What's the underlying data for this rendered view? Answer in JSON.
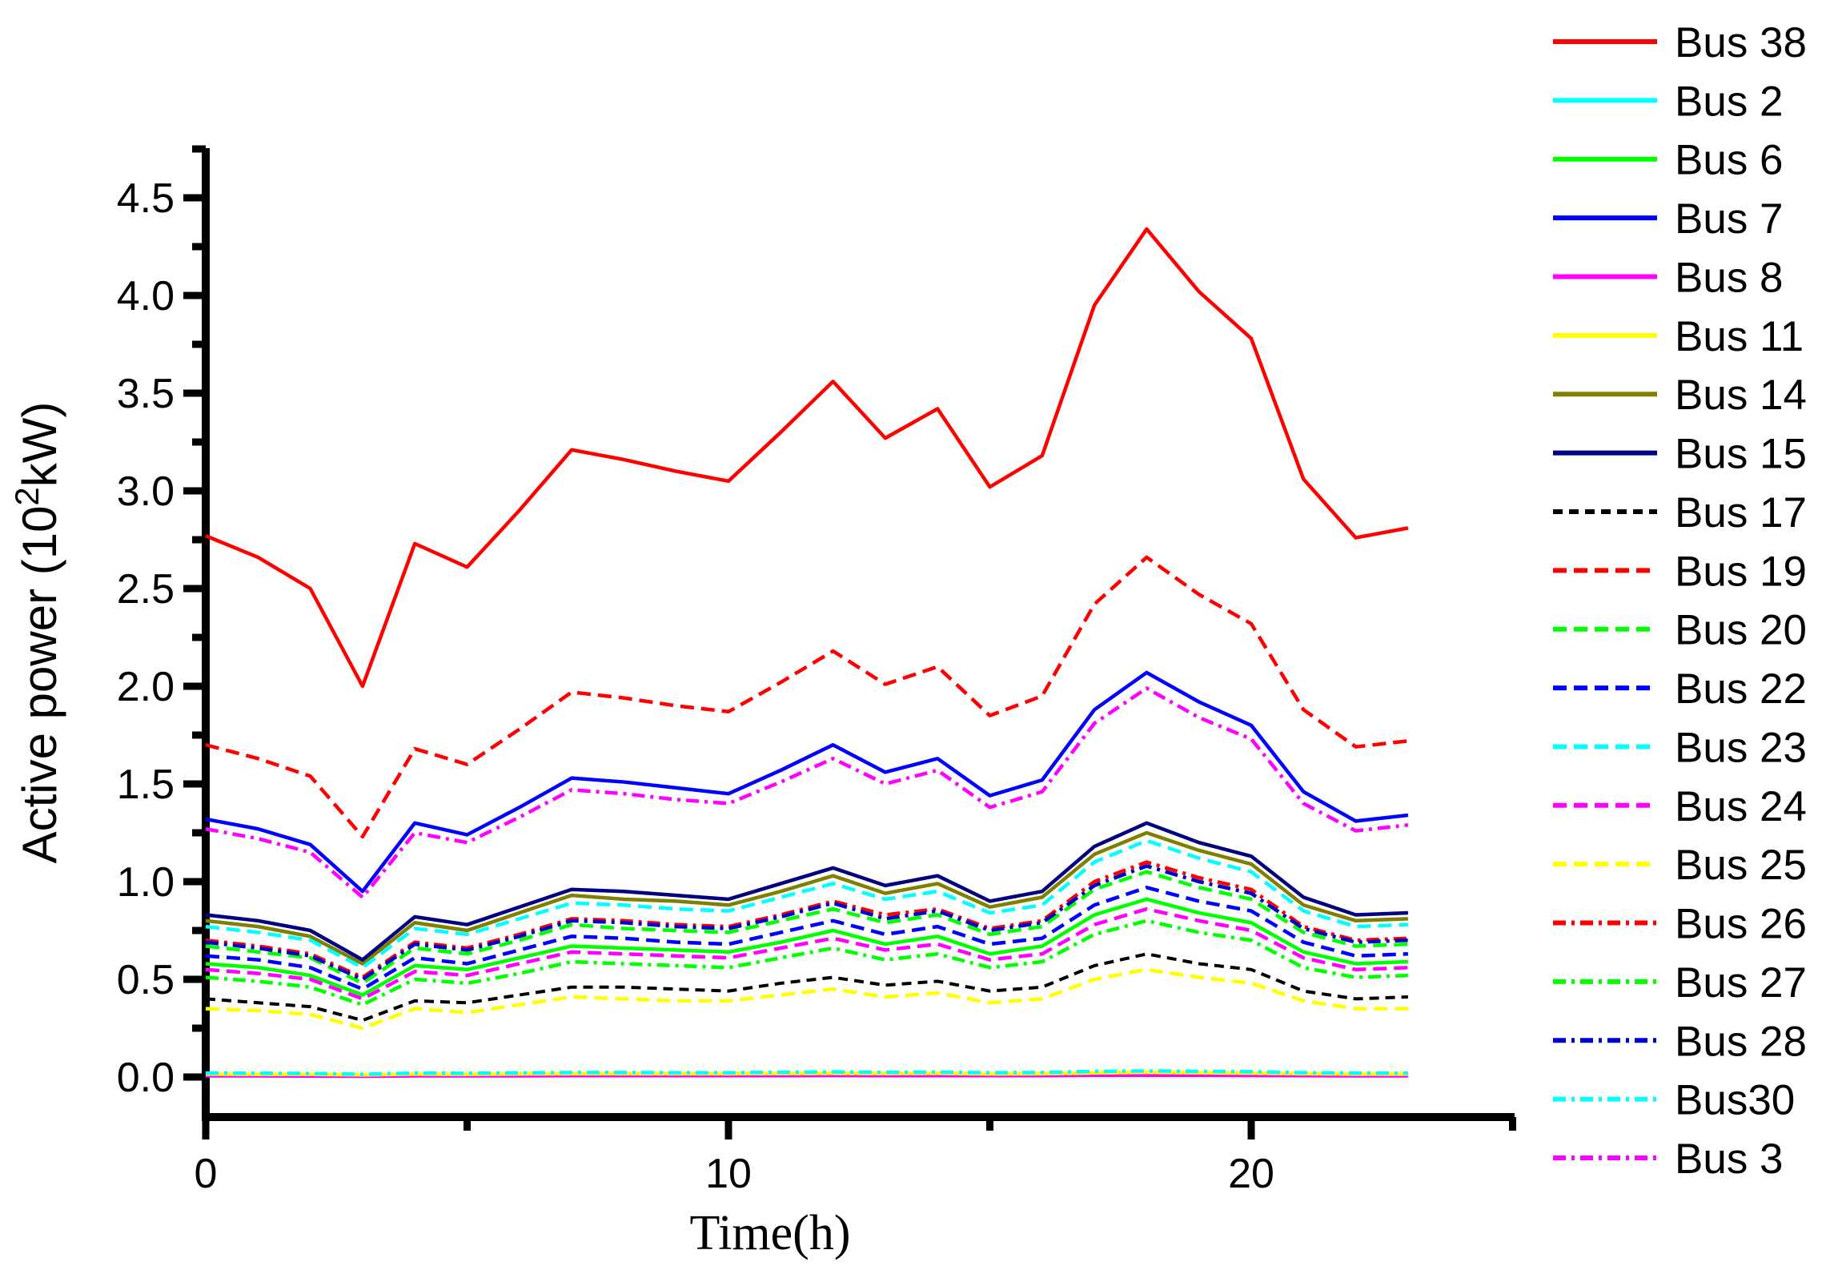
{
  "chart_data": {
    "type": "line",
    "title": "",
    "xlabel": "Time(h)",
    "ylabel_parts": {
      "pre": "Active power (10",
      "sup": "2",
      "post": "kW)"
    },
    "axis_color": "#000000",
    "axes": {
      "xlim": [
        0,
        25.04
      ],
      "ylim": [
        -0.205,
        4.754
      ],
      "x_major": [
        0,
        10,
        20
      ],
      "x_minor": [
        5,
        15,
        25
      ],
      "y_major": [
        0.0,
        0.5,
        1.0,
        1.5,
        2.0,
        2.5,
        3.0,
        3.5,
        4.0,
        4.5
      ],
      "y_minor": [
        0.25,
        0.75,
        1.25,
        1.75,
        2.25,
        2.75,
        3.25,
        3.75,
        4.25,
        4.75
      ],
      "grid": false,
      "legend_position": "right"
    },
    "x_tick_labels": [
      "0",
      "10",
      "20"
    ],
    "y_tick_labels": [
      "0.0",
      "0.5",
      "1.0",
      "1.5",
      "2.0",
      "2.5",
      "3.0",
      "3.5",
      "4.0",
      "4.5"
    ],
    "x": [
      0,
      1,
      2,
      3,
      4,
      5,
      6,
      7,
      8,
      9,
      10,
      11,
      12,
      13,
      14,
      15,
      16,
      17,
      18,
      19,
      20,
      21,
      22,
      23
    ],
    "series": [
      {
        "name": "Bus 38",
        "color": "#FF0000",
        "style": "solid",
        "dash": "",
        "width": 4.5,
        "values": [
          2.77,
          2.66,
          2.5,
          2.0,
          2.73,
          2.61,
          2.9,
          3.21,
          3.16,
          3.1,
          3.05,
          3.3,
          3.56,
          3.27,
          3.42,
          3.02,
          3.18,
          3.95,
          4.34,
          4.02,
          3.78,
          3.06,
          2.76,
          2.81
        ]
      },
      {
        "name": "Bus 2",
        "color": "#00FFFF",
        "style": "solid",
        "dash": "",
        "width": 4.5,
        "values": [
          0.012,
          0.012,
          0.011,
          0.009,
          0.012,
          0.011,
          0.013,
          0.014,
          0.014,
          0.013,
          0.013,
          0.014,
          0.015,
          0.014,
          0.015,
          0.013,
          0.014,
          0.017,
          0.019,
          0.017,
          0.016,
          0.013,
          0.012,
          0.012
        ]
      },
      {
        "name": "Bus 6",
        "color": "#00FF00",
        "style": "solid",
        "dash": "",
        "width": 4.5,
        "values": [
          0.58,
          0.56,
          0.52,
          0.42,
          0.57,
          0.55,
          0.61,
          0.67,
          0.66,
          0.65,
          0.64,
          0.69,
          0.75,
          0.68,
          0.72,
          0.63,
          0.67,
          0.83,
          0.91,
          0.84,
          0.79,
          0.64,
          0.58,
          0.59
        ]
      },
      {
        "name": "Bus 7",
        "color": "#0000FF",
        "style": "solid",
        "dash": "",
        "width": 4.5,
        "values": [
          1.32,
          1.27,
          1.19,
          0.95,
          1.3,
          1.24,
          1.38,
          1.53,
          1.51,
          1.48,
          1.45,
          1.57,
          1.7,
          1.56,
          1.63,
          1.44,
          1.52,
          1.88,
          2.07,
          1.92,
          1.8,
          1.46,
          1.31,
          1.34
        ]
      },
      {
        "name": "Bus 8",
        "color": "#FF00FF",
        "style": "solid",
        "dash": "",
        "width": 4.5,
        "values": [
          0.006,
          0.006,
          0.005,
          0.004,
          0.006,
          0.006,
          0.006,
          0.007,
          0.007,
          0.007,
          0.007,
          0.007,
          0.008,
          0.007,
          0.007,
          0.007,
          0.007,
          0.009,
          0.009,
          0.009,
          0.008,
          0.007,
          0.006,
          0.006
        ]
      },
      {
        "name": "Bus 11",
        "color": "#FFFF00",
        "style": "solid",
        "dash": "",
        "width": 4.5,
        "values": [
          0.015,
          0.014,
          0.014,
          0.011,
          0.015,
          0.014,
          0.016,
          0.017,
          0.017,
          0.017,
          0.017,
          0.018,
          0.019,
          0.018,
          0.019,
          0.016,
          0.017,
          0.021,
          0.024,
          0.022,
          0.02,
          0.017,
          0.015,
          0.015
        ]
      },
      {
        "name": "Bus 14",
        "color": "#808000",
        "style": "solid",
        "dash": "",
        "width": 4.5,
        "values": [
          0.8,
          0.77,
          0.72,
          0.58,
          0.79,
          0.75,
          0.84,
          0.93,
          0.91,
          0.9,
          0.88,
          0.95,
          1.03,
          0.94,
          0.99,
          0.87,
          0.92,
          1.14,
          1.25,
          1.16,
          1.09,
          0.88,
          0.8,
          0.81
        ]
      },
      {
        "name": "Bus 15",
        "color": "#000080",
        "style": "solid",
        "dash": "",
        "width": 4.5,
        "values": [
          0.83,
          0.8,
          0.75,
          0.6,
          0.82,
          0.78,
          0.87,
          0.96,
          0.95,
          0.93,
          0.91,
          0.99,
          1.07,
          0.98,
          1.03,
          0.9,
          0.95,
          1.18,
          1.3,
          1.2,
          1.13,
          0.92,
          0.83,
          0.84
        ]
      },
      {
        "name": "Bus 17",
        "color": "#000000",
        "style": "dash",
        "dash": "12 8",
        "width": 4,
        "values": [
          0.4,
          0.38,
          0.36,
          0.29,
          0.39,
          0.38,
          0.42,
          0.46,
          0.46,
          0.45,
          0.44,
          0.48,
          0.51,
          0.47,
          0.49,
          0.44,
          0.46,
          0.57,
          0.63,
          0.58,
          0.55,
          0.44,
          0.4,
          0.41
        ]
      },
      {
        "name": "Bus 19",
        "color": "#FF0000",
        "style": "dash",
        "dash": "17 9",
        "width": 4.5,
        "values": [
          1.7,
          1.63,
          1.54,
          1.23,
          1.68,
          1.6,
          1.78,
          1.97,
          1.94,
          1.9,
          1.87,
          2.02,
          2.18,
          2.01,
          2.1,
          1.85,
          1.95,
          2.42,
          2.66,
          2.47,
          2.32,
          1.88,
          1.69,
          1.72
        ]
      },
      {
        "name": "Bus 20",
        "color": "#00FF00",
        "style": "dash",
        "dash": "17 9",
        "width": 4.5,
        "values": [
          0.67,
          0.64,
          0.61,
          0.48,
          0.66,
          0.63,
          0.7,
          0.78,
          0.76,
          0.75,
          0.74,
          0.8,
          0.86,
          0.79,
          0.83,
          0.73,
          0.77,
          0.96,
          1.05,
          0.97,
          0.91,
          0.74,
          0.67,
          0.68
        ]
      },
      {
        "name": "Bus 22",
        "color": "#0000FF",
        "style": "dash",
        "dash": "17 9",
        "width": 4.5,
        "values": [
          0.62,
          0.6,
          0.56,
          0.45,
          0.61,
          0.58,
          0.65,
          0.72,
          0.71,
          0.69,
          0.68,
          0.74,
          0.8,
          0.73,
          0.77,
          0.68,
          0.71,
          0.88,
          0.97,
          0.9,
          0.85,
          0.69,
          0.62,
          0.63
        ]
      },
      {
        "name": "Bus 23",
        "color": "#00FFFF",
        "style": "dash",
        "dash": "17 9",
        "width": 4.5,
        "values": [
          0.77,
          0.74,
          0.7,
          0.56,
          0.76,
          0.73,
          0.81,
          0.89,
          0.88,
          0.86,
          0.85,
          0.92,
          0.99,
          0.91,
          0.95,
          0.84,
          0.88,
          1.1,
          1.21,
          1.12,
          1.05,
          0.85,
          0.77,
          0.78
        ]
      },
      {
        "name": "Bus 24",
        "color": "#FF00FF",
        "style": "dash",
        "dash": "17 9",
        "width": 4.5,
        "values": [
          0.55,
          0.53,
          0.5,
          0.4,
          0.54,
          0.52,
          0.58,
          0.64,
          0.63,
          0.62,
          0.61,
          0.66,
          0.71,
          0.65,
          0.68,
          0.6,
          0.63,
          0.78,
          0.86,
          0.8,
          0.75,
          0.61,
          0.55,
          0.56
        ]
      },
      {
        "name": "Bus 25",
        "color": "#FFFF00",
        "style": "dash",
        "dash": "17 9",
        "width": 4.5,
        "values": [
          0.35,
          0.34,
          0.32,
          0.25,
          0.35,
          0.33,
          0.37,
          0.41,
          0.4,
          0.39,
          0.39,
          0.42,
          0.45,
          0.41,
          0.43,
          0.38,
          0.4,
          0.5,
          0.55,
          0.51,
          0.48,
          0.39,
          0.35,
          0.35
        ]
      },
      {
        "name": "Bus 26",
        "color": "#FF0000",
        "style": "dashdot",
        "dash": "16 7 4 7",
        "width": 4.5,
        "values": [
          0.7,
          0.67,
          0.63,
          0.51,
          0.69,
          0.66,
          0.73,
          0.81,
          0.8,
          0.78,
          0.77,
          0.83,
          0.9,
          0.83,
          0.86,
          0.76,
          0.8,
          1.0,
          1.1,
          1.02,
          0.96,
          0.77,
          0.7,
          0.71
        ]
      },
      {
        "name": "Bus 27",
        "color": "#00FF00",
        "style": "dashdot",
        "dash": "16 7 4 7",
        "width": 4.5,
        "values": [
          0.51,
          0.49,
          0.46,
          0.37,
          0.5,
          0.48,
          0.53,
          0.59,
          0.58,
          0.57,
          0.56,
          0.61,
          0.66,
          0.6,
          0.63,
          0.56,
          0.59,
          0.73,
          0.8,
          0.74,
          0.7,
          0.56,
          0.51,
          0.52
        ]
      },
      {
        "name": "Bus 28",
        "color": "#0000CD",
        "style": "dashdot",
        "dash": "16 7 4 7",
        "width": 4.5,
        "values": [
          0.69,
          0.66,
          0.62,
          0.5,
          0.68,
          0.65,
          0.72,
          0.8,
          0.79,
          0.77,
          0.76,
          0.82,
          0.89,
          0.81,
          0.85,
          0.75,
          0.79,
          0.98,
          1.08,
          1.0,
          0.94,
          0.76,
          0.69,
          0.7
        ]
      },
      {
        "name": "Bus30",
        "color": "#00FFFF",
        "style": "dashdot",
        "dash": "16 7 4 7",
        "width": 4.5,
        "values": [
          0.02,
          0.019,
          0.018,
          0.014,
          0.02,
          0.019,
          0.021,
          0.023,
          0.023,
          0.022,
          0.022,
          0.024,
          0.026,
          0.024,
          0.025,
          0.022,
          0.023,
          0.029,
          0.031,
          0.029,
          0.027,
          0.022,
          0.02,
          0.02
        ]
      },
      {
        "name": "Bus 3",
        "color": "#FF00FF",
        "style": "dashdot",
        "dash": "16 7 4 7",
        "width": 4.5,
        "values": [
          1.27,
          1.22,
          1.15,
          0.92,
          1.25,
          1.2,
          1.33,
          1.47,
          1.45,
          1.42,
          1.4,
          1.51,
          1.63,
          1.5,
          1.57,
          1.38,
          1.46,
          1.81,
          1.99,
          1.84,
          1.73,
          1.4,
          1.26,
          1.29
        ]
      }
    ]
  }
}
